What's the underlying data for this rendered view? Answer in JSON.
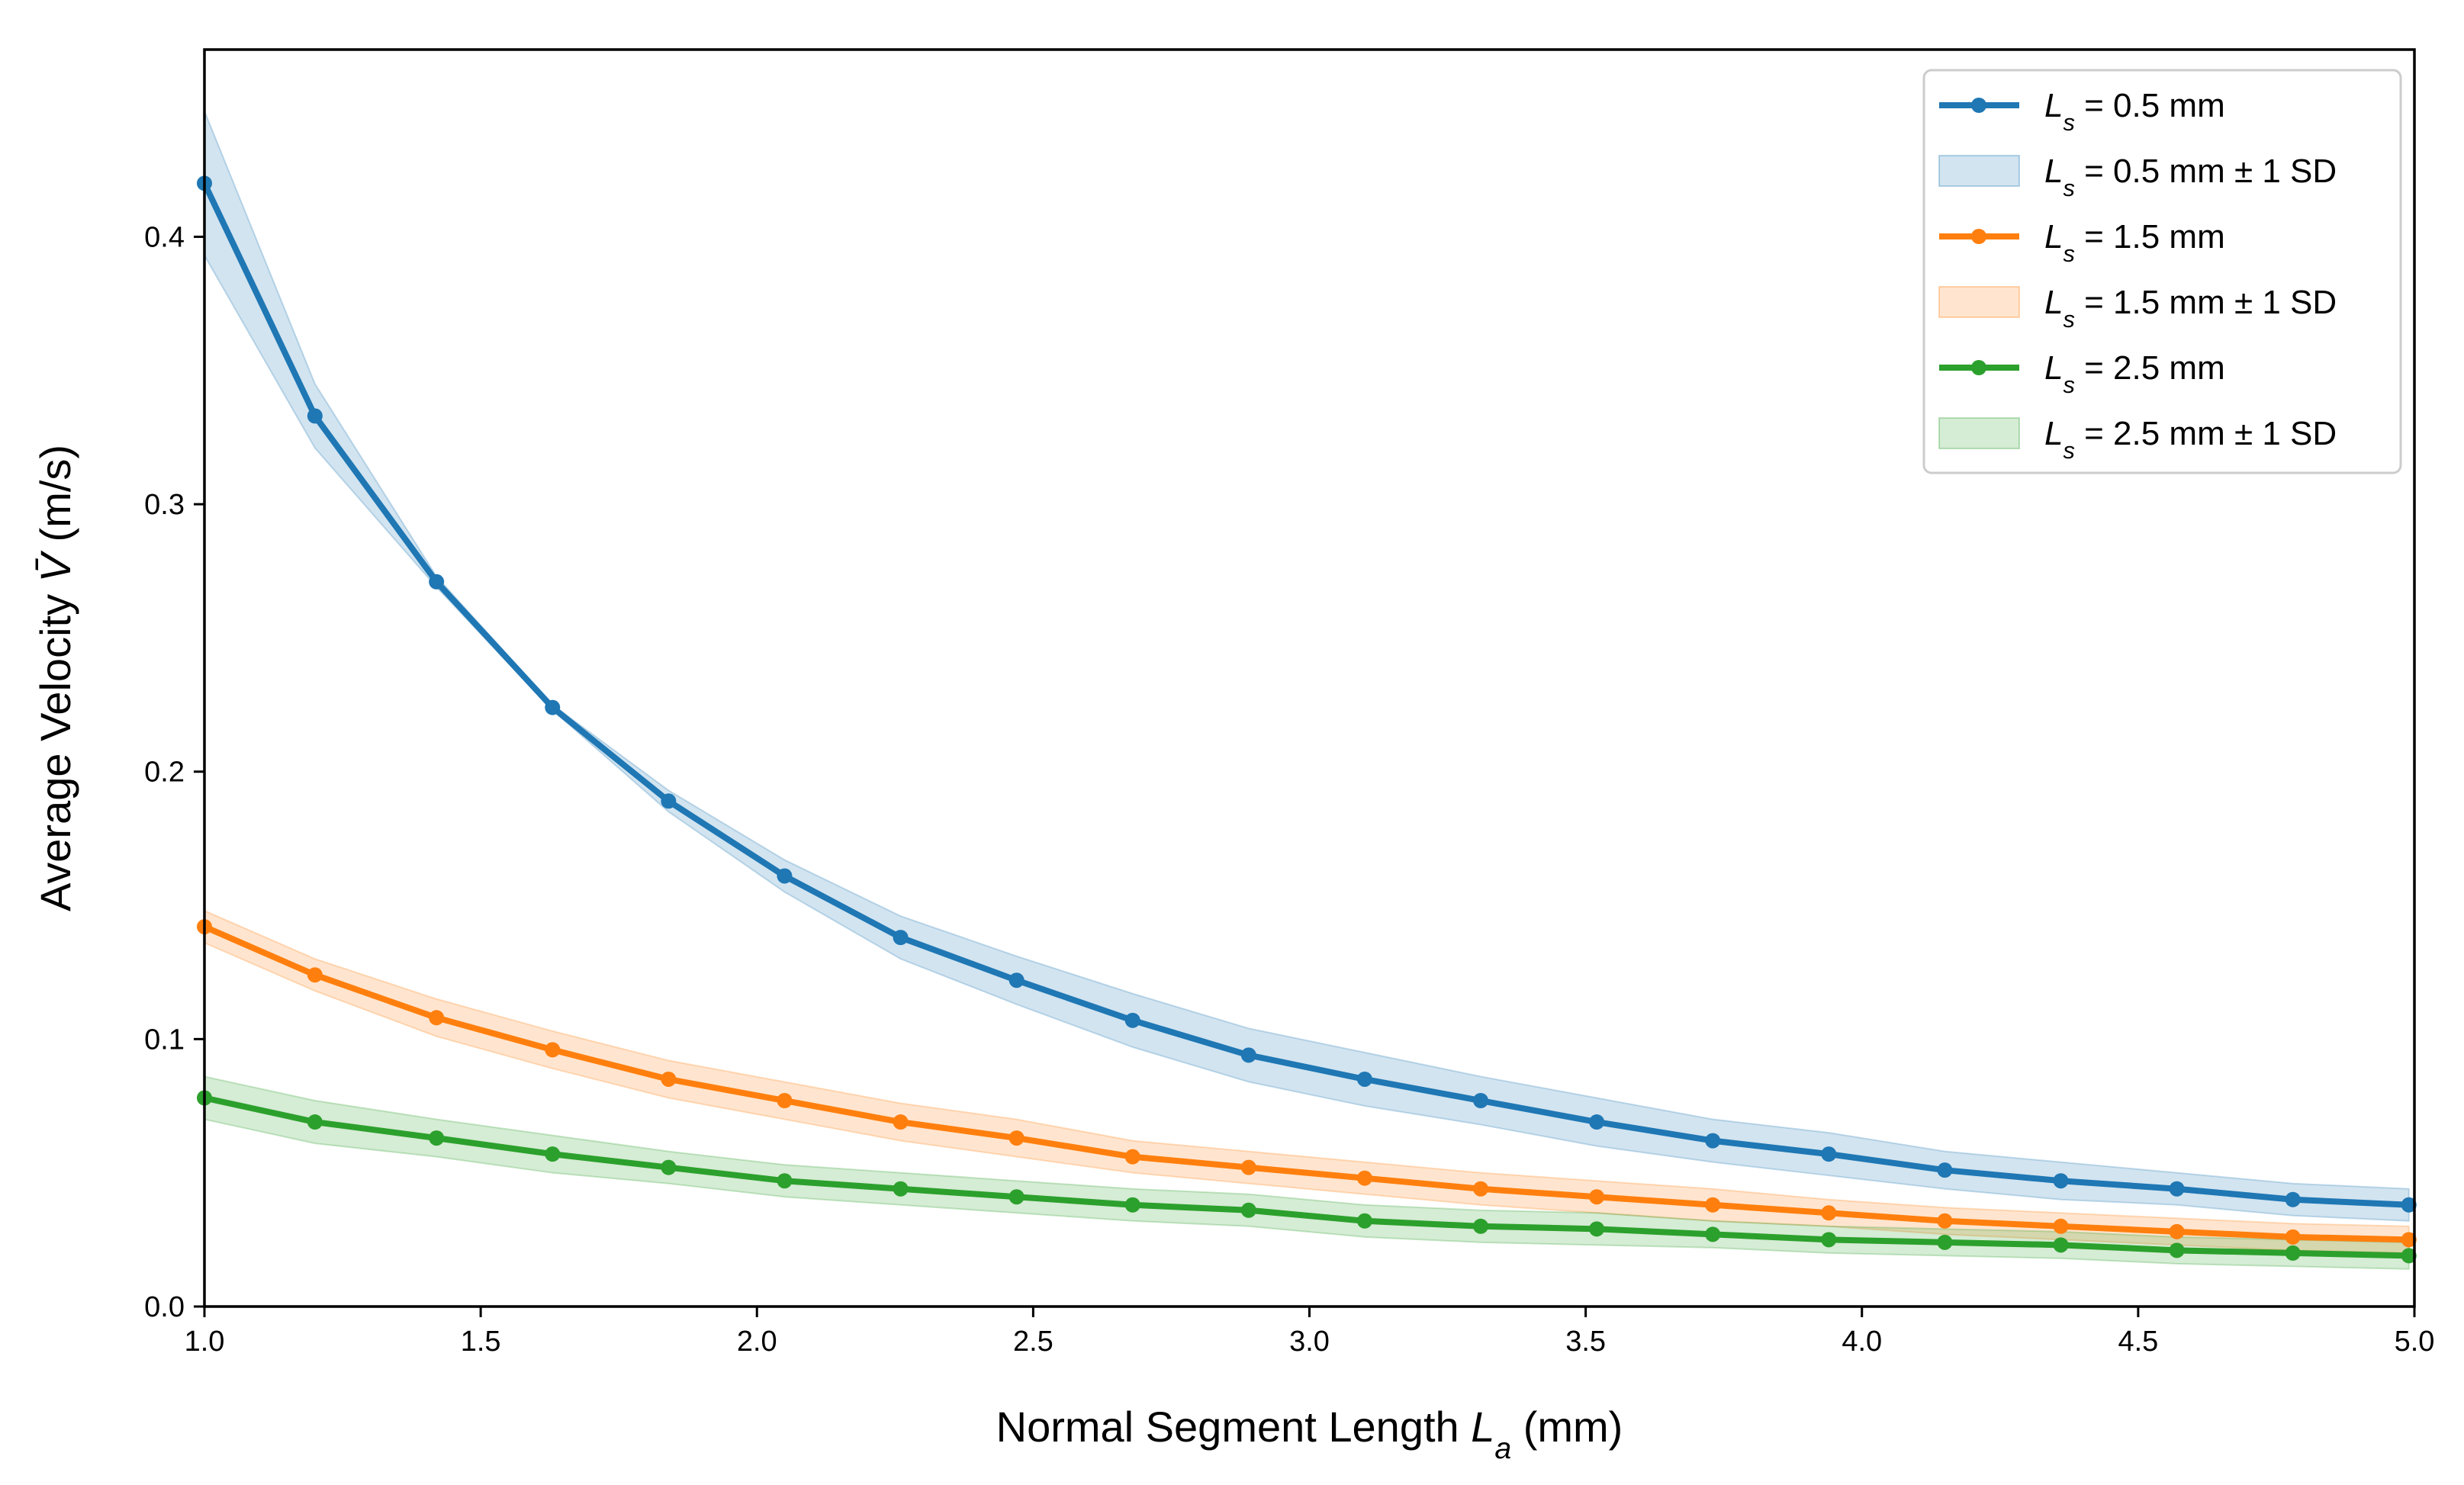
{
  "chart_data": {
    "type": "line",
    "title": "",
    "xlabel": {
      "main": "Normal Segment Length ",
      "var": "L",
      "sub": "a",
      "unit": " (mm)"
    },
    "ylabel": {
      "main": "Average Velocity ",
      "var": "V̄",
      "unit": " (m/s)"
    },
    "xlim": [
      1.0,
      5.0
    ],
    "ylim": [
      0.0,
      0.47
    ],
    "xticks": [
      1.0,
      1.5,
      2.0,
      2.5,
      3.0,
      3.5,
      4.0,
      4.5,
      5.0
    ],
    "xtick_labels": [
      "1.0",
      "1.5",
      "2.0",
      "2.5",
      "3.0",
      "3.5",
      "4.0",
      "4.5",
      "5.0"
    ],
    "yticks": [
      0.0,
      0.1,
      0.2,
      0.3,
      0.4
    ],
    "ytick_labels": [
      "0.0",
      "0.1",
      "0.2",
      "0.3",
      "0.4"
    ],
    "grid": false,
    "legend_position": "top-right",
    "x": [
      1.0,
      1.2,
      1.42,
      1.63,
      1.84,
      2.05,
      2.26,
      2.47,
      2.68,
      2.89,
      3.1,
      3.31,
      3.52,
      3.73,
      3.94,
      4.15,
      4.36,
      4.57,
      4.78,
      4.99
    ],
    "series": [
      {
        "name": "0.5 mm",
        "legend_line": {
          "var": "L",
          "sub": "s",
          "rest": " = 0.5 mm"
        },
        "legend_band": {
          "var": "L",
          "sub": "s",
          "rest": " = 0.5 mm ± 1 SD"
        },
        "color": "#1f77b4",
        "values": [
          0.42,
          0.333,
          0.271,
          0.224,
          0.189,
          0.161,
          0.138,
          0.122,
          0.107,
          0.094,
          0.085,
          0.077,
          0.069,
          0.062,
          0.057,
          0.051,
          0.047,
          0.044,
          0.04,
          0.038
        ],
        "sd": [
          0.027,
          0.012,
          0.002,
          0.001,
          0.004,
          0.006,
          0.008,
          0.009,
          0.01,
          0.01,
          0.01,
          0.009,
          0.009,
          0.008,
          0.008,
          0.007,
          0.007,
          0.006,
          0.006,
          0.006
        ]
      },
      {
        "name": "1.5 mm",
        "legend_line": {
          "var": "L",
          "sub": "s",
          "rest": " = 1.5 mm"
        },
        "legend_band": {
          "var": "L",
          "sub": "s",
          "rest": " = 1.5 mm ± 1 SD"
        },
        "color": "#ff7f0e",
        "values": [
          0.142,
          0.124,
          0.108,
          0.096,
          0.085,
          0.077,
          0.069,
          0.063,
          0.056,
          0.052,
          0.048,
          0.044,
          0.041,
          0.038,
          0.035,
          0.032,
          0.03,
          0.028,
          0.026,
          0.025
        ],
        "sd": [
          0.006,
          0.006,
          0.007,
          0.007,
          0.007,
          0.007,
          0.007,
          0.007,
          0.006,
          0.006,
          0.006,
          0.006,
          0.006,
          0.006,
          0.005,
          0.005,
          0.005,
          0.005,
          0.005,
          0.005
        ]
      },
      {
        "name": "2.5 mm",
        "legend_line": {
          "var": "L",
          "sub": "s",
          "rest": " = 2.5 mm"
        },
        "legend_band": {
          "var": "L",
          "sub": "s",
          "rest": " = 2.5 mm ± 1 SD"
        },
        "color": "#2ca02c",
        "values": [
          0.078,
          0.069,
          0.063,
          0.057,
          0.052,
          0.047,
          0.044,
          0.041,
          0.038,
          0.036,
          0.032,
          0.03,
          0.029,
          0.027,
          0.025,
          0.024,
          0.023,
          0.021,
          0.02,
          0.019
        ],
        "sd": [
          0.008,
          0.008,
          0.007,
          0.007,
          0.006,
          0.006,
          0.006,
          0.006,
          0.006,
          0.006,
          0.006,
          0.006,
          0.006,
          0.005,
          0.005,
          0.005,
          0.005,
          0.005,
          0.005,
          0.005
        ]
      }
    ]
  }
}
